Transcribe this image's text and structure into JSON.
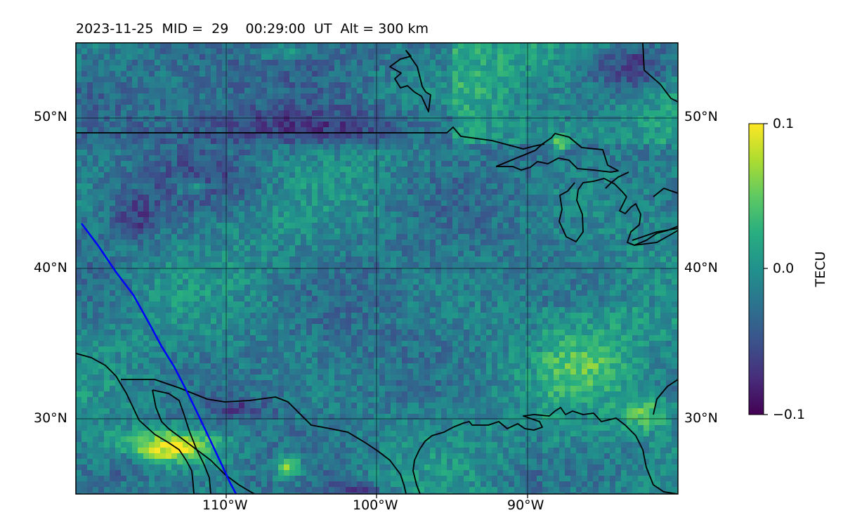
{
  "title": "2023-11-25  MID =  29    00:29:00  UT  Alt = 300 km",
  "map": {
    "lat_ticks": [
      "50°N",
      "40°N",
      "30°N"
    ],
    "lon_ticks": [
      "110°W",
      "100°W",
      "90°W"
    ],
    "lat_range": [
      25,
      55
    ],
    "lon_range": [
      -120,
      -80
    ],
    "gridlines": true,
    "colormap": "viridis",
    "track_color": "#0000ff",
    "coastline_color": "#000000"
  },
  "colorbar": {
    "label": "TECU",
    "ticks": [
      "0.1",
      "0.0",
      "−0.1"
    ],
    "range": [
      -0.1,
      0.1
    ]
  }
}
